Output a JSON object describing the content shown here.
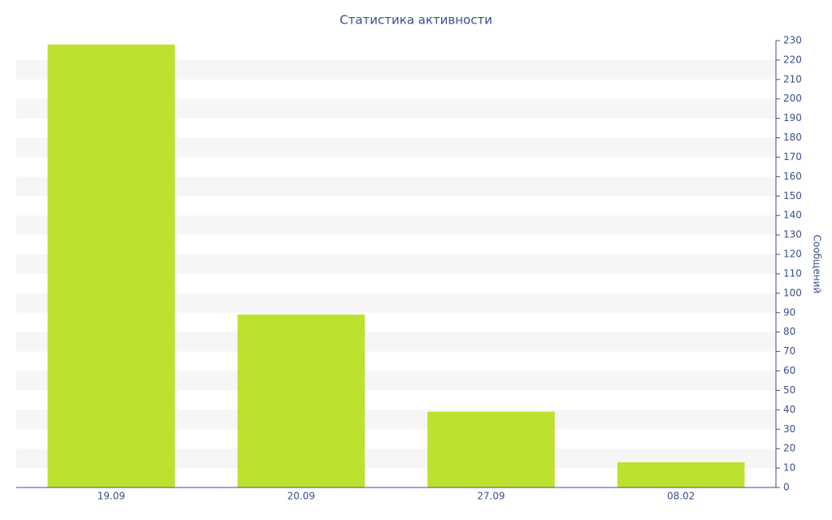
{
  "chart_data": {
    "type": "bar",
    "title": "Статистика активности",
    "y_label": "Сообщений",
    "categories": [
      "19.09",
      "20.09",
      "27.09",
      "08.02"
    ],
    "values": [
      228,
      89,
      39,
      13
    ],
    "color": "#bce12f",
    "ylim": [
      0,
      230
    ],
    "yticks": [
      0,
      10,
      20,
      30,
      40,
      50,
      60,
      70,
      80,
      90,
      100,
      110,
      120,
      130,
      140,
      150,
      160,
      170,
      180,
      190,
      200,
      210,
      220,
      230
    ],
    "y_axis_side": "right",
    "grid_bands": true
  }
}
